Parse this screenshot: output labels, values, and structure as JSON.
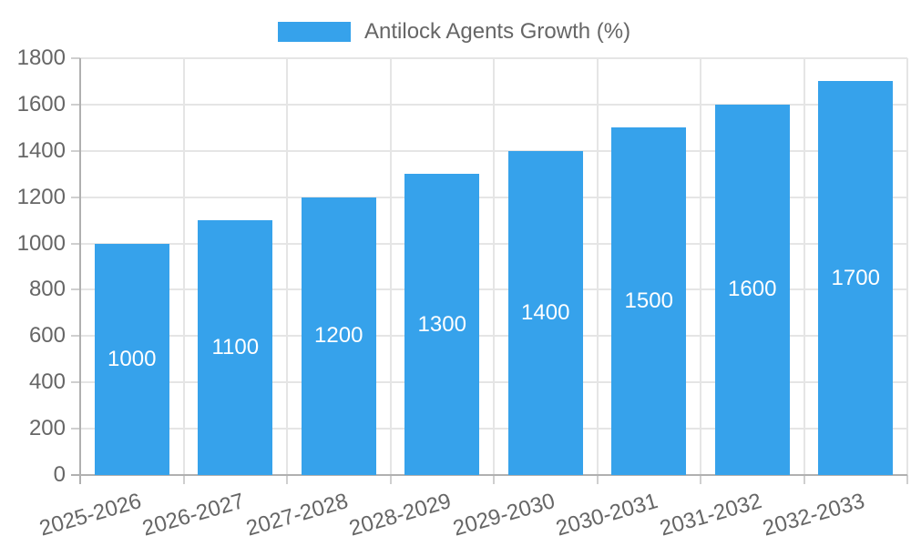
{
  "chart_data": {
    "type": "bar",
    "title": "",
    "legend_label": "Antilock Agents Growth (%)",
    "legend_position": "top",
    "categories": [
      "2025-2026",
      "2026-2027",
      "2027-2028",
      "2028-2029",
      "2029-2030",
      "2030-2031",
      "2031-2032",
      "2032-2033"
    ],
    "series": [
      {
        "name": "Antilock Agents Growth (%)",
        "values": [
          1000,
          1100,
          1200,
          1300,
          1400,
          1500,
          1600,
          1700
        ]
      }
    ],
    "value_labels": [
      "1000",
      "1100",
      "1200",
      "1300",
      "1400",
      "1500",
      "1600",
      "1700"
    ],
    "xlabel": "",
    "ylabel": "",
    "ylim": [
      0,
      1800
    ],
    "yticks": [
      0,
      200,
      400,
      600,
      800,
      1000,
      1200,
      1400,
      1600,
      1800
    ],
    "grid": true,
    "colors": {
      "bar": "#36A2EB",
      "value_label_text": "#ffffff",
      "tick_text": "#666666",
      "legend_text": "#666666",
      "gridline": "#e5e5e5",
      "axis_border": "#b0b0b0",
      "tick_mark": "#cfcfcf",
      "background": "#ffffff"
    }
  }
}
